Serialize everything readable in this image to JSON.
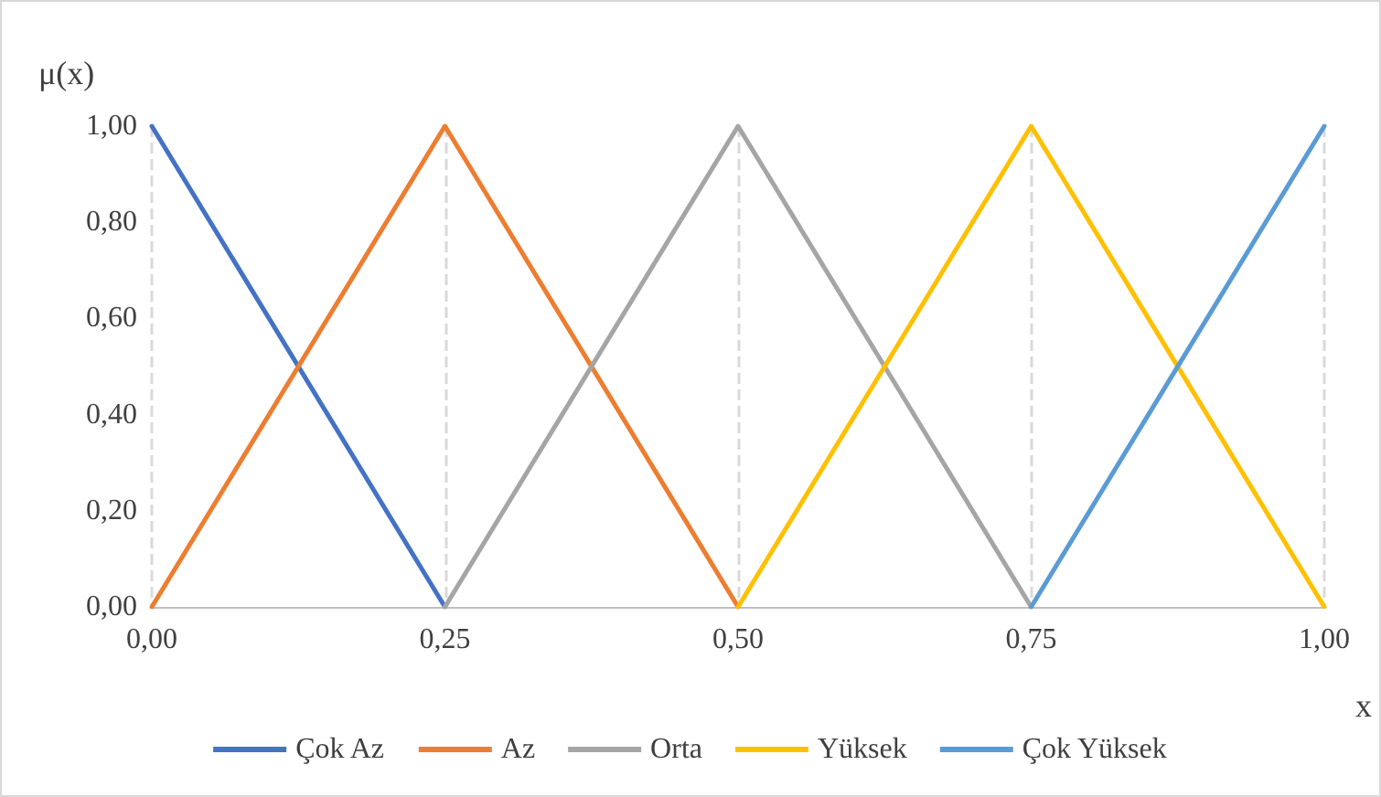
{
  "chart_data": {
    "type": "line",
    "xlabel": "x",
    "ylabel": "μ(x)",
    "series": [
      {
        "name": "Çok Az",
        "color": "#4472c4",
        "x": [
          0,
          0.25
        ],
        "values": [
          1,
          0
        ]
      },
      {
        "name": "Az",
        "color": "#ed7d31",
        "x": [
          0,
          0.25,
          0.5
        ],
        "values": [
          0,
          1,
          0
        ]
      },
      {
        "name": "Orta",
        "color": "#a5a5a5",
        "x": [
          0.25,
          0.5,
          0.75
        ],
        "values": [
          0,
          1,
          0
        ]
      },
      {
        "name": "Yüksek",
        "color": "#ffc000",
        "x": [
          0.5,
          0.75,
          1
        ],
        "values": [
          0,
          1,
          0
        ]
      },
      {
        "name": "Çok Yüksek",
        "color": "#5b9bd5",
        "x": [
          0.75,
          1
        ],
        "values": [
          0,
          1
        ]
      }
    ],
    "xlim": [
      0,
      1
    ],
    "xticks": [
      {
        "value": 0,
        "label": "0,00"
      },
      {
        "value": 0.25,
        "label": "0,25"
      },
      {
        "value": 0.5,
        "label": "0,50"
      },
      {
        "value": 0.75,
        "label": "0,75"
      },
      {
        "value": 1,
        "label": "1,00"
      }
    ],
    "ylim": [
      0,
      1
    ],
    "yticks": [
      {
        "value": 0,
        "label": "0,00"
      },
      {
        "value": 0.2,
        "label": "0,20"
      },
      {
        "value": 0.4,
        "label": "0,40"
      },
      {
        "value": 0.6,
        "label": "0,60"
      },
      {
        "value": 0.8,
        "label": "0,80"
      },
      {
        "value": 1,
        "label": "1,00"
      }
    ],
    "grid": "x",
    "legend": "bottom",
    "marker": "none",
    "line_style": "solid"
  }
}
